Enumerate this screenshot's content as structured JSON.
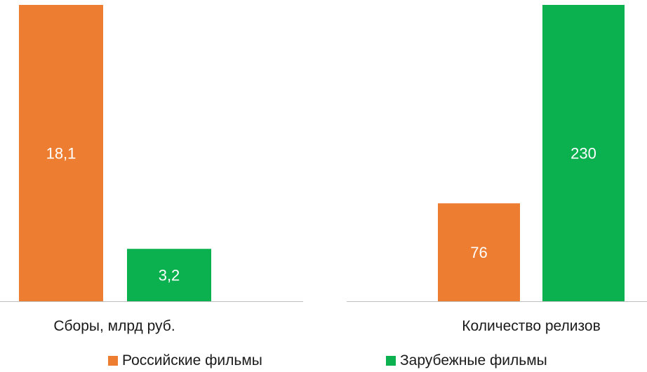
{
  "chart_data": [
    {
      "type": "bar",
      "categories": [
        "Сборы, млрд руб."
      ],
      "series": [
        {
          "name": "Российские фильмы",
          "values": [
            18.1
          ],
          "labels": [
            "18,1"
          ]
        },
        {
          "name": "Зарубежные фильмы",
          "values": [
            3.2
          ],
          "labels": [
            "3,2"
          ]
        }
      ],
      "ylim": [
        0,
        18.1
      ],
      "grid": false
    },
    {
      "type": "bar",
      "categories": [
        "Количество релизов"
      ],
      "series": [
        {
          "name": "Российские фильмы",
          "values": [
            76
          ],
          "labels": [
            "76"
          ]
        },
        {
          "name": "Зарубежные фильмы",
          "values": [
            230
          ],
          "labels": [
            "230"
          ]
        }
      ],
      "ylim": [
        0,
        230
      ],
      "grid": false
    }
  ],
  "legend": [
    {
      "label": "Российские фильмы",
      "color": "#ed7d31"
    },
    {
      "label": "Зарубежные фильмы",
      "color": "#0bb04f"
    }
  ],
  "colors": {
    "russian": "#ed7d31",
    "foreign": "#0bb04f",
    "label": "#ffffff",
    "axis": "#bfbfbf",
    "text": "#1a1a1a"
  }
}
